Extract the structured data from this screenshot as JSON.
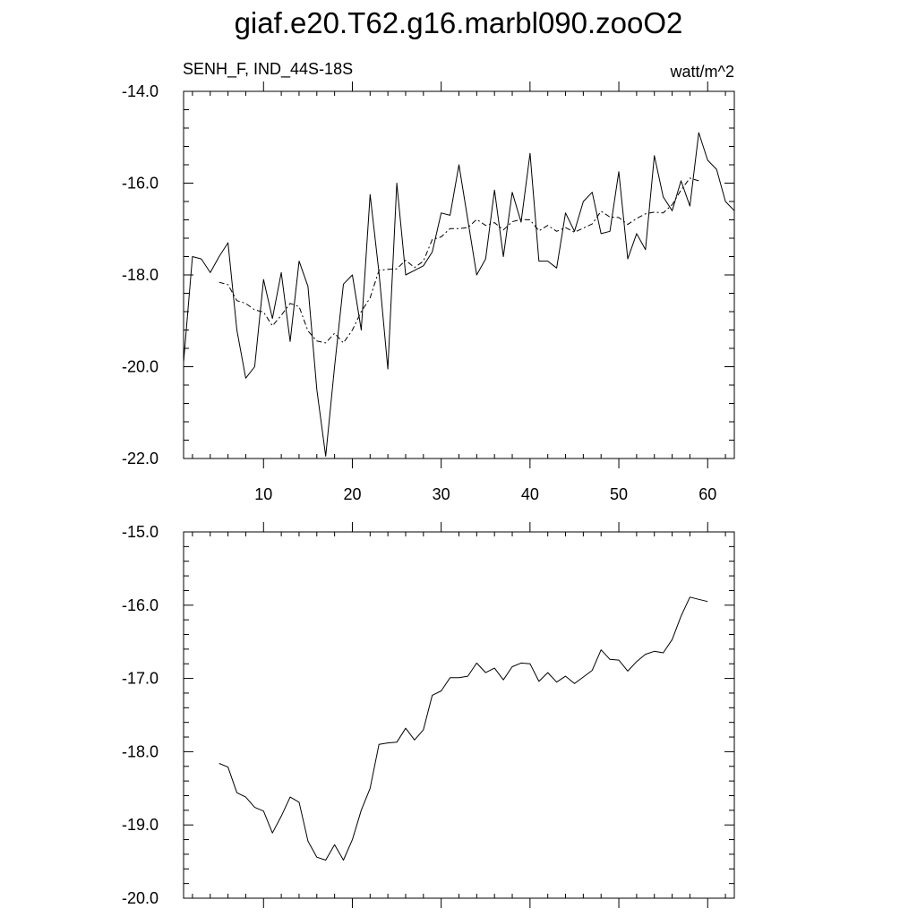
{
  "title": "giaf.e20.T62.g16.marbl090.zooO2",
  "subtitle_left": "SENH_F, IND_44S-18S",
  "subtitle_right": "watt/m^2",
  "chart_data": [
    {
      "type": "line",
      "xlim": [
        1,
        63
      ],
      "ylim": [
        -22.0,
        -14.0
      ],
      "x_ticks": [
        10,
        20,
        30,
        40,
        50,
        60
      ],
      "x_tick_labels": [
        "10",
        "20",
        "30",
        "40",
        "50",
        "60"
      ],
      "y_ticks": [
        -22.0,
        -20.0,
        -18.0,
        -16.0,
        -14.0
      ],
      "y_tick_labels": [
        "-22.0",
        "-20.0",
        "-18.0",
        "-16.0",
        "-14.0"
      ],
      "series": [
        {
          "style": "solid",
          "x": [
            1,
            2,
            3,
            4,
            5,
            6,
            7,
            8,
            9,
            10,
            11,
            12,
            13,
            14,
            15,
            16,
            17,
            18,
            19,
            20,
            21,
            22,
            23,
            24,
            25,
            26,
            27,
            28,
            29,
            30,
            31,
            32,
            33,
            34,
            35,
            36,
            37,
            38,
            39,
            40,
            41,
            42,
            43,
            44,
            45,
            46,
            47,
            48,
            49,
            50,
            51,
            52,
            53,
            54,
            55,
            56,
            57,
            58,
            59,
            60,
            61,
            62,
            63
          ],
          "y": [
            -19.9,
            -17.6,
            -17.65,
            -17.95,
            -17.6,
            -17.3,
            -19.2,
            -20.25,
            -20.0,
            -18.1,
            -18.95,
            -17.95,
            -19.45,
            -17.7,
            -18.25,
            -20.5,
            -21.95,
            -20.0,
            -18.2,
            -18.0,
            -19.2,
            -16.25,
            -17.95,
            -20.05,
            -16.0,
            -18.0,
            -17.9,
            -17.8,
            -17.5,
            -16.65,
            -16.7,
            -15.6,
            -16.8,
            -18.0,
            -17.65,
            -16.15,
            -17.6,
            -16.2,
            -16.85,
            -15.35,
            -17.7,
            -17.7,
            -17.85,
            -16.65,
            -17.05,
            -16.4,
            -16.2,
            -17.1,
            -17.05,
            -15.75,
            -17.65,
            -17.1,
            -17.45,
            -15.4,
            -16.3,
            -16.6,
            -15.95,
            -16.5,
            -14.9,
            -15.5,
            -15.7,
            -16.4,
            -16.6
          ]
        },
        {
          "style": "dashed",
          "x": [
            5,
            6,
            7,
            8,
            9,
            10,
            11,
            12,
            13,
            14,
            15,
            16,
            17,
            18,
            19,
            20,
            21,
            22,
            23,
            24,
            25,
            26,
            27,
            28,
            29,
            30,
            31,
            32,
            33,
            34,
            35,
            36,
            37,
            38,
            39,
            40,
            41,
            42,
            43,
            44,
            45,
            46,
            47,
            48,
            49,
            50,
            51,
            52,
            53,
            54,
            55,
            56,
            57,
            58,
            59
          ],
          "y": [
            -18.16,
            -18.21,
            -18.56,
            -18.62,
            -18.76,
            -18.81,
            -19.11,
            -18.88,
            -18.62,
            -18.69,
            -19.22,
            -19.44,
            -19.48,
            -19.27,
            -19.48,
            -19.2,
            -18.8,
            -18.5,
            -17.9,
            -17.88,
            -17.87,
            -17.68,
            -17.84,
            -17.7,
            -17.23,
            -17.17,
            -16.99,
            -16.99,
            -16.97,
            -16.79,
            -16.92,
            -16.86,
            -17.02,
            -16.84,
            -16.79,
            -16.8,
            -17.04,
            -16.92,
            -17.05,
            -16.97,
            -17.07,
            -16.98,
            -16.89,
            -16.61,
            -16.74,
            -16.75,
            -16.9,
            -16.77,
            -16.67,
            -16.63,
            -16.65,
            -16.47,
            -16.15,
            -15.89,
            -15.95
          ]
        }
      ]
    },
    {
      "type": "line",
      "xlim": [
        1,
        63
      ],
      "ylim": [
        -20.0,
        -15.0
      ],
      "x_ticks": [
        10,
        20,
        30,
        40,
        50,
        60
      ],
      "x_tick_labels": [],
      "y_ticks": [
        -20.0,
        -19.0,
        -18.0,
        -17.0,
        -16.0,
        -15.0
      ],
      "y_tick_labels": [
        "-20.0",
        "-19.0",
        "-18.0",
        "-17.0",
        "-16.0",
        "-15.0"
      ],
      "series": [
        {
          "style": "solid",
          "x": [
            5,
            6,
            7,
            8,
            9,
            10,
            11,
            12,
            13,
            14,
            15,
            16,
            17,
            18,
            19,
            20,
            21,
            22,
            23,
            24,
            25,
            26,
            27,
            28,
            29,
            30,
            31,
            32,
            33,
            34,
            35,
            36,
            37,
            38,
            39,
            40,
            41,
            42,
            43,
            44,
            45,
            46,
            47,
            48,
            49,
            50,
            51,
            52,
            53,
            54,
            55,
            56,
            57,
            58,
            59,
            60
          ],
          "y": [
            -18.16,
            -18.21,
            -18.56,
            -18.62,
            -18.76,
            -18.81,
            -19.11,
            -18.88,
            -18.62,
            -18.69,
            -19.22,
            -19.44,
            -19.48,
            -19.27,
            -19.48,
            -19.2,
            -18.8,
            -18.5,
            -17.9,
            -17.88,
            -17.87,
            -17.68,
            -17.84,
            -17.7,
            -17.23,
            -17.17,
            -16.99,
            -16.99,
            -16.97,
            -16.79,
            -16.92,
            -16.86,
            -17.02,
            -16.84,
            -16.79,
            -16.8,
            -17.04,
            -16.92,
            -17.05,
            -16.97,
            -17.07,
            -16.98,
            -16.89,
            -16.61,
            -16.74,
            -16.75,
            -16.9,
            -16.77,
            -16.67,
            -16.63,
            -16.65,
            -16.47,
            -16.15,
            -15.89,
            -15.92,
            -15.95
          ]
        }
      ]
    }
  ]
}
